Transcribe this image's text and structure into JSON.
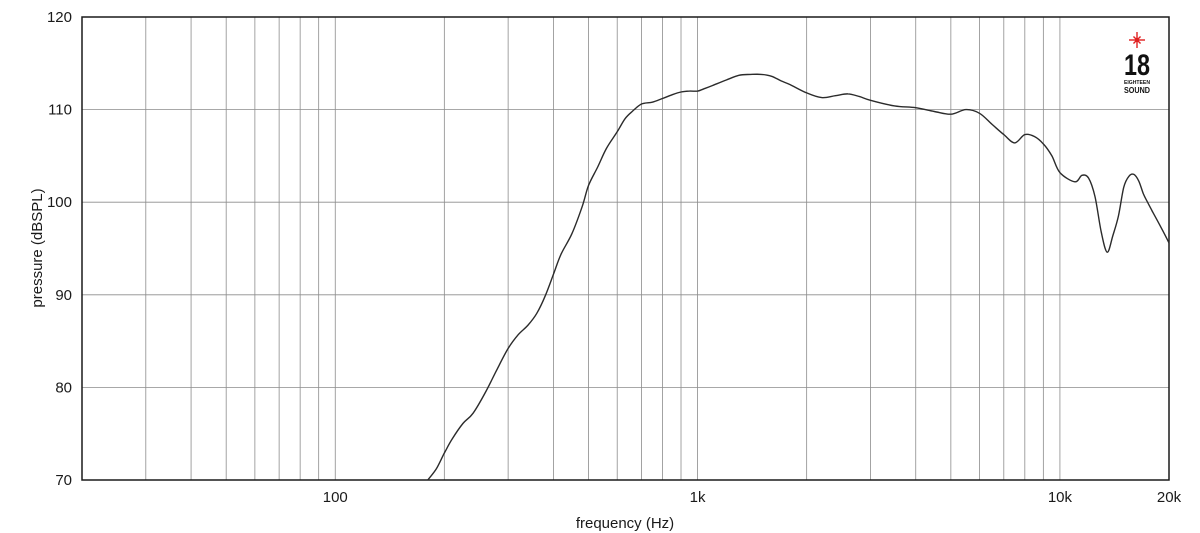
{
  "chart_data": {
    "type": "line",
    "title": "",
    "xlabel": "frequency (Hz)",
    "ylabel": "pressure (dBSPL)",
    "x_scale": "log",
    "xlim": [
      20,
      20000
    ],
    "ylim": [
      70,
      120
    ],
    "grid": true,
    "x_tick_labels": [
      {
        "value": 100,
        "label": "100"
      },
      {
        "value": 1000,
        "label": "1k"
      },
      {
        "value": 10000,
        "label": "10k"
      },
      {
        "value": 20000,
        "label": "20k"
      }
    ],
    "y_ticks": [
      70,
      80,
      90,
      100,
      110,
      120
    ],
    "line_color": "#2b2b2b",
    "series": [
      {
        "x": [
          180,
          190,
          200,
          210,
          225,
          240,
          260,
          280,
          300,
          320,
          340,
          360,
          380,
          400,
          420,
          450,
          480,
          500,
          530,
          560,
          600,
          630,
          660,
          700,
          750,
          800,
          850,
          900,
          950,
          1000,
          1050,
          1100,
          1200,
          1300,
          1400,
          1500,
          1600,
          1700,
          1800,
          2000,
          2200,
          2400,
          2600,
          2800,
          3000,
          3500,
          4000,
          4500,
          5000,
          5500,
          6000,
          6500,
          7000,
          7500,
          8000,
          8500,
          9000,
          9500,
          10000,
          11000,
          11500,
          12000,
          12500,
          13000,
          13500,
          14000,
          14500,
          15000,
          15500,
          16000,
          16500,
          17000,
          17500,
          18000,
          19000,
          20000
        ],
        "y": [
          70.0,
          71.2,
          72.9,
          74.4,
          76.1,
          77.2,
          79.5,
          82.0,
          84.2,
          85.7,
          86.7,
          88.0,
          89.9,
          92.2,
          94.4,
          96.6,
          99.5,
          101.8,
          103.8,
          105.8,
          107.6,
          109.0,
          109.8,
          110.6,
          110.8,
          111.2,
          111.6,
          111.9,
          112.0,
          112.0,
          112.3,
          112.6,
          113.2,
          113.7,
          113.8,
          113.8,
          113.6,
          113.1,
          112.7,
          111.8,
          111.3,
          111.5,
          111.7,
          111.4,
          111.0,
          110.4,
          110.2,
          109.8,
          109.5,
          110.0,
          109.6,
          108.4,
          107.3,
          106.4,
          107.3,
          107.1,
          106.3,
          105.0,
          103.2,
          102.2,
          102.9,
          102.6,
          100.6,
          96.8,
          94.6,
          96.4,
          98.5,
          101.6,
          102.8,
          103.0,
          102.3,
          100.9,
          99.9,
          99.0,
          97.3,
          95.6
        ]
      }
    ]
  },
  "logo": {
    "number": "18",
    "line1": "EIGHTEEN",
    "line2": "SOUND",
    "star_color": "#e02020"
  }
}
